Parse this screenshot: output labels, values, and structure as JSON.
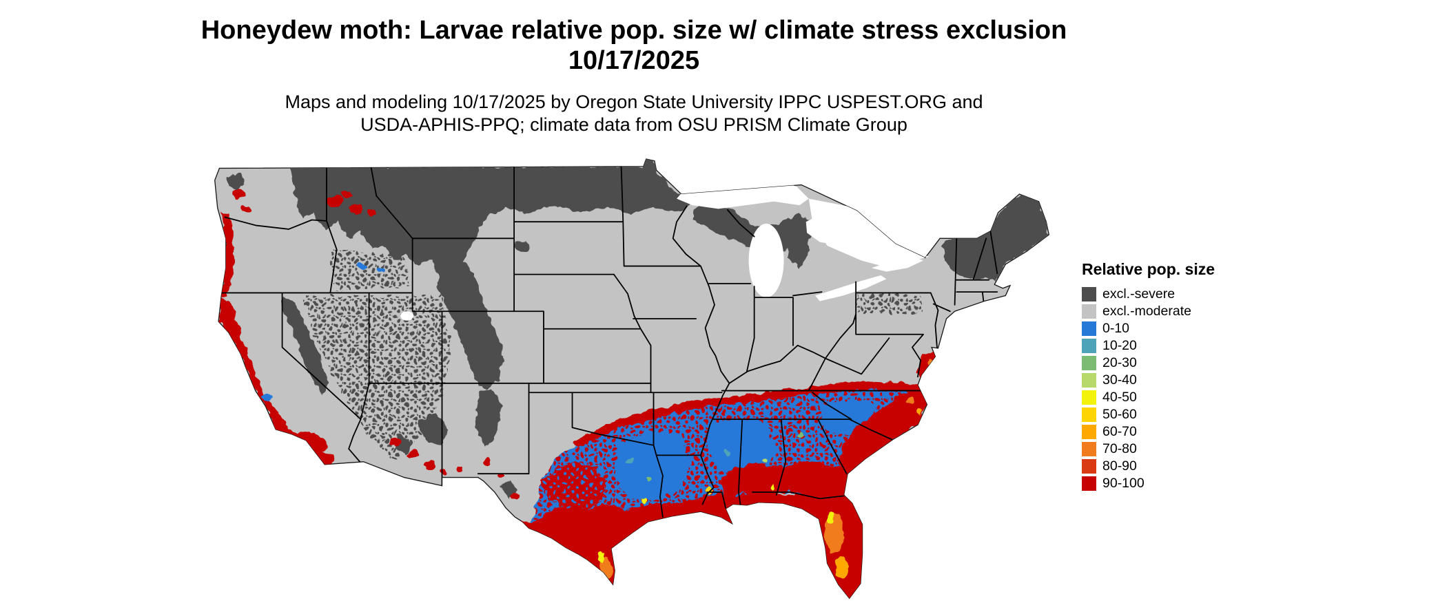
{
  "title": "Honeydew moth: Larvae relative pop. size w/ climate stress exclusion 10/17/2025",
  "subtitle": "Maps and modeling 10/17/2025 by Oregon State University IPPC USPEST.ORG and USDA-APHIS-PPQ; climate data from OSU PRISM Climate Group",
  "map": {
    "region": "Continental United States",
    "kind": "raster choropleth of relative population size with climate stress exclusion zones",
    "date_shown": "10/17/2025"
  },
  "legend": {
    "title": "Relative pop. size",
    "items": [
      {
        "label": "excl.-severe",
        "color": "#4d4d4d"
      },
      {
        "label": "excl.-moderate",
        "color": "#c3c3c3"
      },
      {
        "label": "0-10",
        "color": "#2779d8"
      },
      {
        "label": "10-20",
        "color": "#4fa3b8"
      },
      {
        "label": "20-30",
        "color": "#7cbb72"
      },
      {
        "label": "30-40",
        "color": "#b7d96b"
      },
      {
        "label": "40-50",
        "color": "#f2f20d"
      },
      {
        "label": "50-60",
        "color": "#ffd400"
      },
      {
        "label": "60-70",
        "color": "#ffa800"
      },
      {
        "label": "70-80",
        "color": "#f07c1e"
      },
      {
        "label": "80-90",
        "color": "#d93a14"
      },
      {
        "label": "90-100",
        "color": "#c70000"
      }
    ]
  }
}
